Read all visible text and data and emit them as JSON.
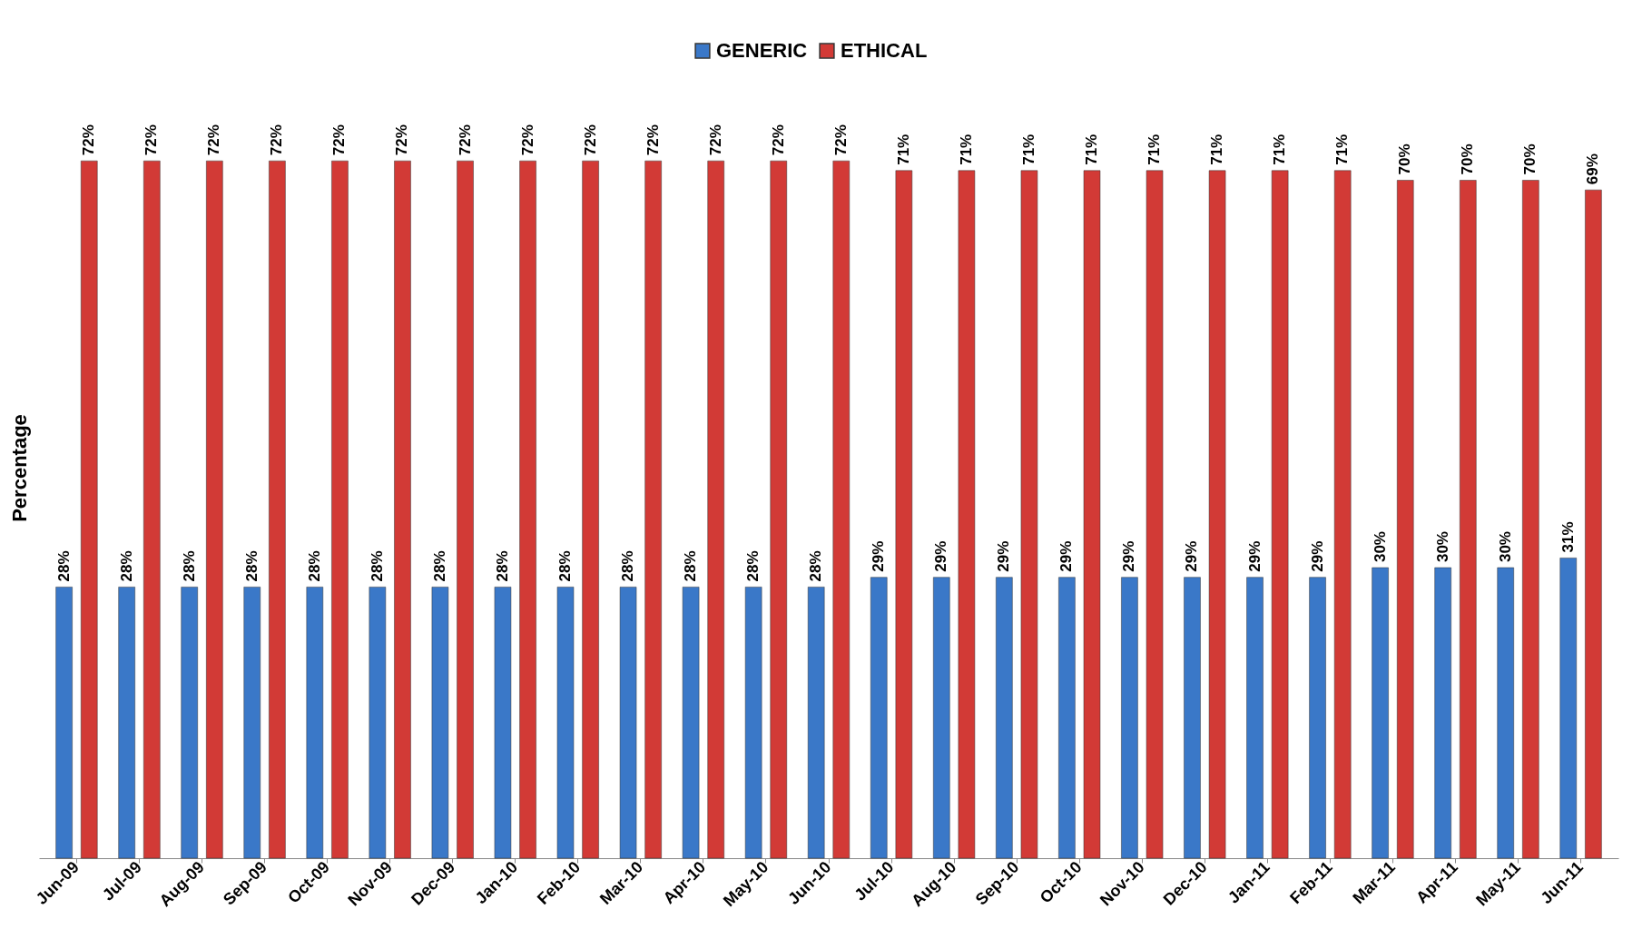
{
  "chart_data": {
    "type": "bar",
    "ylabel": "Percentage",
    "legend": "top",
    "grid": false,
    "categories": [
      "Jun-09",
      "Jul-09",
      "Aug-09",
      "Sep-09",
      "Oct-09",
      "Nov-09",
      "Dec-09",
      "Jan-10",
      "Feb-10",
      "Mar-10",
      "Apr-10",
      "May-10",
      "Jun-10",
      "Jul-10",
      "Aug-10",
      "Sep-10",
      "Oct-10",
      "Nov-10",
      "Dec-10",
      "Jan-11",
      "Feb-11",
      "Mar-11",
      "Apr-11",
      "May-11",
      "Jun-11"
    ],
    "series": [
      {
        "name": "GENERIC",
        "color": "#3a78c8",
        "values": [
          28,
          28,
          28,
          28,
          28,
          28,
          28,
          28,
          28,
          28,
          28,
          28,
          28,
          29,
          29,
          29,
          29,
          29,
          29,
          29,
          29,
          30,
          30,
          30,
          31
        ],
        "value_labels": [
          "28%",
          "28%",
          "28%",
          "28%",
          "28%",
          "28%",
          "28%",
          "28%",
          "28%",
          "28%",
          "28%",
          "28%",
          "28%",
          "29%",
          "29%",
          "29%",
          "29%",
          "29%",
          "29%",
          "29%",
          "29%",
          "30%",
          "30%",
          "30%",
          "31%"
        ]
      },
      {
        "name": "ETHICAL",
        "color": "#d23a36",
        "values": [
          72,
          72,
          72,
          72,
          72,
          72,
          72,
          72,
          72,
          72,
          72,
          72,
          72,
          71,
          71,
          71,
          71,
          71,
          71,
          71,
          71,
          70,
          70,
          70,
          69
        ],
        "value_labels": [
          "72%",
          "72%",
          "72%",
          "72%",
          "72%",
          "72%",
          "72%",
          "72%",
          "72%",
          "72%",
          "72%",
          "72%",
          "72%",
          "71%",
          "71%",
          "71%",
          "71%",
          "71%",
          "71%",
          "71%",
          "71%",
          "70%",
          "70%",
          "70%",
          "69%"
        ]
      }
    ]
  }
}
